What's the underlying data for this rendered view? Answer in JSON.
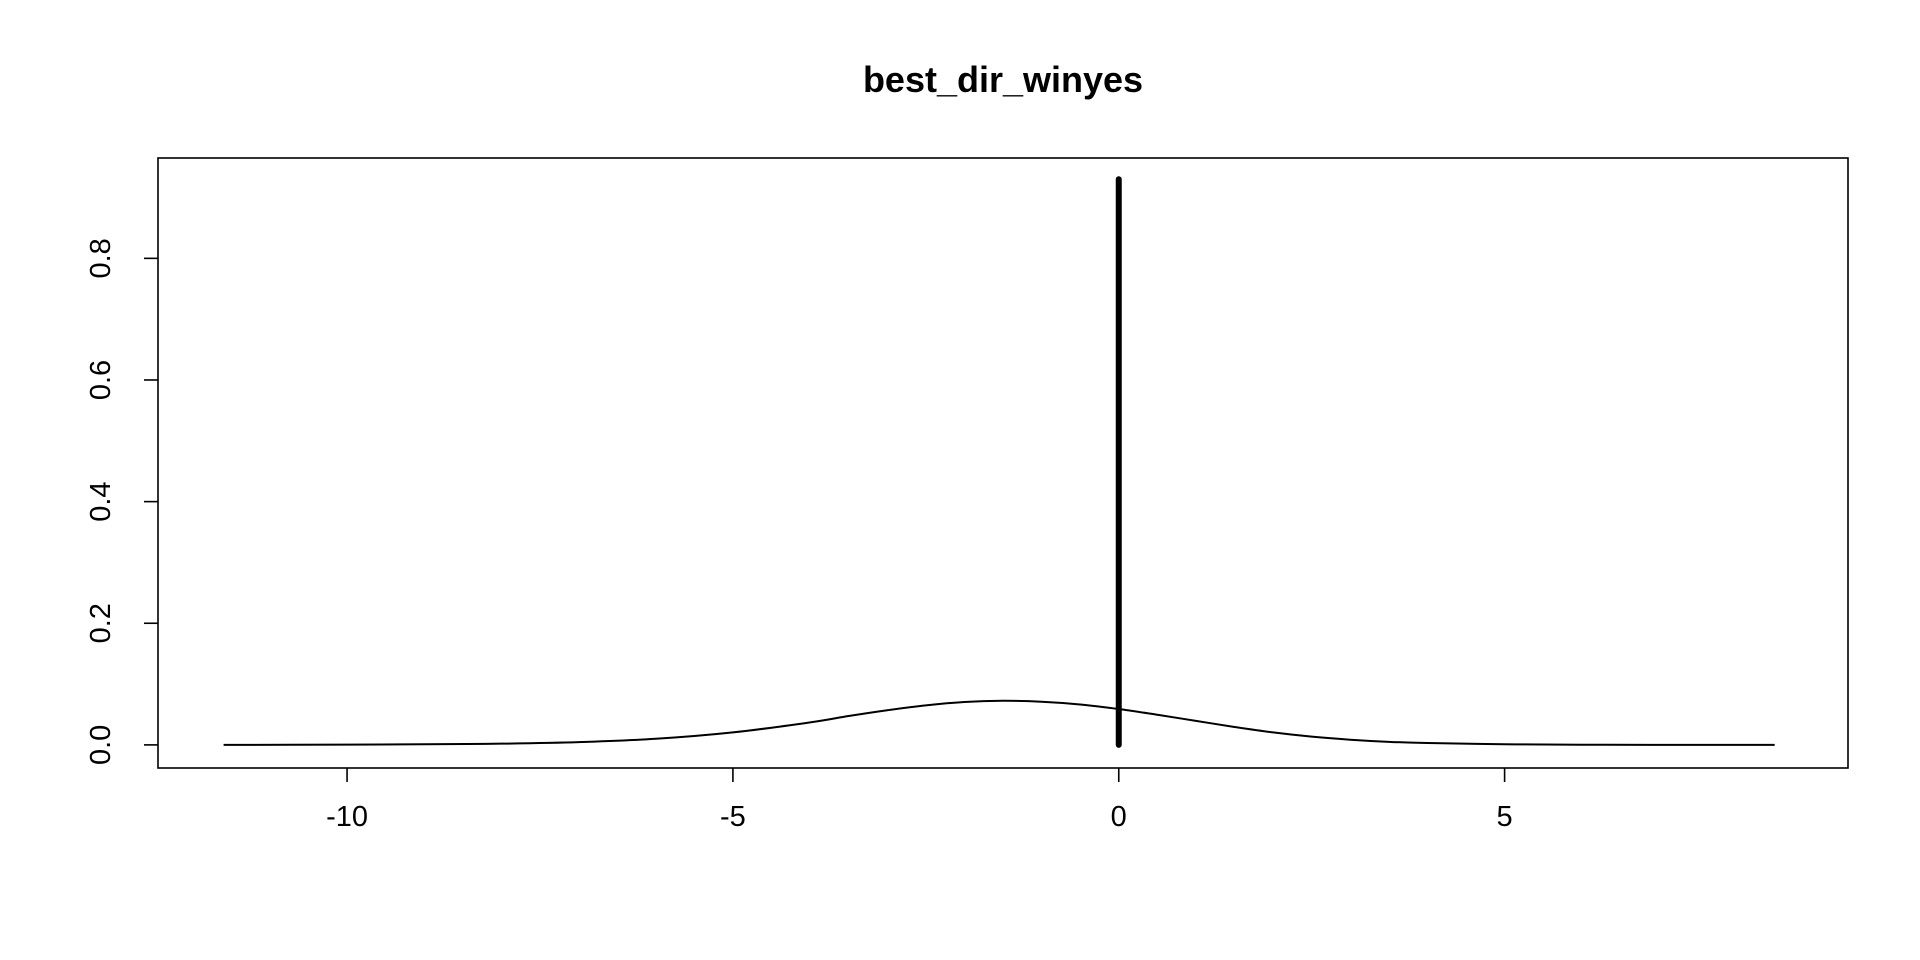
{
  "chart_data": {
    "type": "line",
    "title": "best_dir_winyes",
    "xlabel": "",
    "ylabel": "",
    "xlim": [
      -12.45,
      9.45
    ],
    "ylim": [
      -0.038,
      0.965
    ],
    "x_ticks": [
      -10,
      -5,
      0,
      5
    ],
    "x_tick_labels": [
      "-10",
      "-5",
      "0",
      "5"
    ],
    "y_ticks": [
      0.0,
      0.2,
      0.4,
      0.6,
      0.8
    ],
    "y_tick_labels": [
      "0.0",
      "0.2",
      "0.4",
      "0.6",
      "0.8"
    ],
    "grid": false,
    "legend": "none",
    "line_color": "#000000",
    "series": [
      {
        "kind": "density_curve",
        "x": [
          -11.6,
          -10,
          -9,
          -8,
          -7,
          -6,
          -5,
          -4,
          -3.5,
          -3,
          -2.5,
          -2,
          -1.5,
          -1,
          -0.5,
          0,
          0.5,
          1,
          1.5,
          2,
          2.5,
          3,
          3.5,
          4,
          5,
          6,
          7,
          8.5
        ],
        "y": [
          0.0,
          0.0005,
          0.001,
          0.002,
          0.0045,
          0.01,
          0.0205,
          0.037,
          0.0475,
          0.057,
          0.065,
          0.0705,
          0.0725,
          0.071,
          0.0665,
          0.059,
          0.0495,
          0.0395,
          0.0295,
          0.0205,
          0.0135,
          0.0085,
          0.005,
          0.003,
          0.001,
          0.0003,
          0.0001,
          0.0
        ]
      },
      {
        "kind": "spike",
        "x": 0,
        "y0": 0.0,
        "y1": 0.93
      }
    ]
  }
}
